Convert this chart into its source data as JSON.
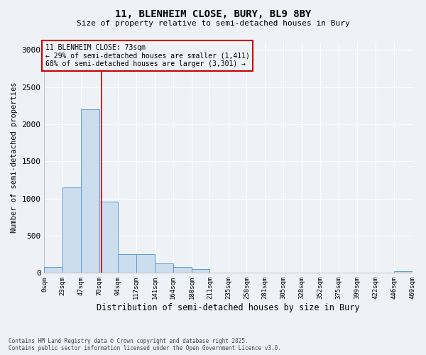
{
  "title1": "11, BLENHEIM CLOSE, BURY, BL9 8BY",
  "title2": "Size of property relative to semi-detached houses in Bury",
  "xlabel": "Distribution of semi-detached houses by size in Bury",
  "ylabel": "Number of semi-detached properties",
  "annotation_line1": "11 BLENHEIM CLOSE: 73sqm",
  "annotation_line2": "← 29% of semi-detached houses are smaller (1,411)",
  "annotation_line3": "68% of semi-detached houses are larger (3,301) →",
  "footer_line1": "Contains HM Land Registry data © Crown copyright and database right 2025.",
  "footer_line2": "Contains public sector information licensed under the Open Government Licence v3.0.",
  "property_size": 73,
  "bin_edges": [
    0,
    23,
    47,
    70,
    94,
    117,
    141,
    164,
    188,
    211,
    235,
    258,
    281,
    305,
    328,
    352,
    375,
    399,
    422,
    446,
    469
  ],
  "bar_heights": [
    75,
    1150,
    2200,
    960,
    255,
    255,
    130,
    75,
    55,
    0,
    0,
    0,
    0,
    0,
    0,
    0,
    0,
    0,
    0,
    20
  ],
  "bar_color": "#ccdded",
  "bar_edge_color": "#5b9bd5",
  "annotation_box_edge_color": "#cc0000",
  "vline_color": "#cc0000",
  "background_color": "#eef2f7",
  "grid_color": "#ffffff",
  "ylim": [
    0,
    3100
  ],
  "yticks": [
    0,
    500,
    1000,
    1500,
    2000,
    2500,
    3000
  ],
  "tick_labels": [
    "0sqm",
    "23sqm",
    "47sqm",
    "70sqm",
    "94sqm",
    "117sqm",
    "141sqm",
    "164sqm",
    "188sqm",
    "211sqm",
    "235sqm",
    "258sqm",
    "281sqm",
    "305sqm",
    "328sqm",
    "352sqm",
    "375sqm",
    "399sqm",
    "422sqm",
    "446sqm",
    "469sqm"
  ]
}
